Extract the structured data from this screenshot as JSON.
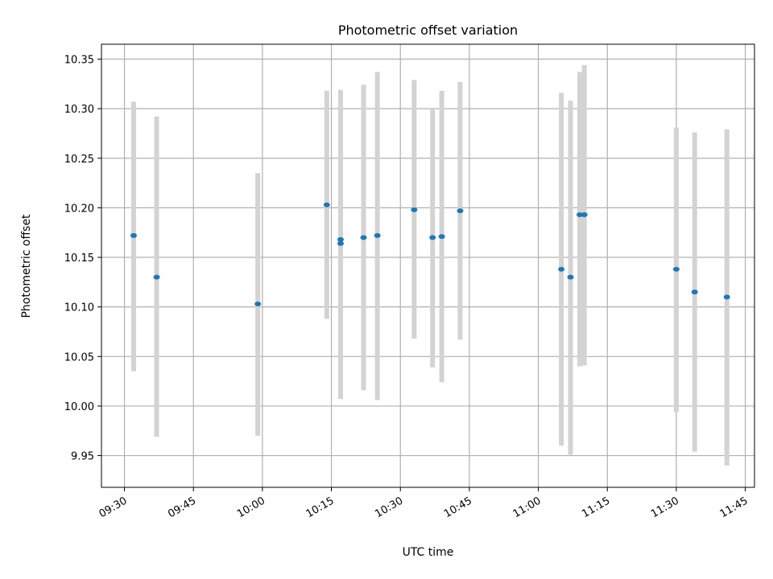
{
  "chart_data": {
    "type": "scatter",
    "title": "Photometric offset variation",
    "xlabel": "UTC time",
    "ylabel": "Photometric offset",
    "xlim": [
      "09:25",
      "11:47"
    ],
    "ylim": [
      9.918,
      10.365
    ],
    "x_ticks": [
      "09:30",
      "09:45",
      "10:00",
      "10:15",
      "10:30",
      "10:45",
      "11:00",
      "11:15",
      "11:30",
      "11:45"
    ],
    "y_ticks": [
      "9.95",
      "10.00",
      "10.05",
      "10.10",
      "10.15",
      "10.20",
      "10.25",
      "10.30",
      "10.35"
    ],
    "grid": true,
    "colors": {
      "points": "#1f77b4",
      "errorbars": "#d3d3d3",
      "grid": "#b0b0b0"
    },
    "points": [
      {
        "x": "09:32",
        "y": 10.172,
        "err_low": 10.035,
        "err_high": 10.307
      },
      {
        "x": "09:37",
        "y": 10.13,
        "err_low": 9.969,
        "err_high": 10.292
      },
      {
        "x": "09:59",
        "y": 10.103,
        "err_low": 9.97,
        "err_high": 10.235
      },
      {
        "x": "10:14",
        "y": 10.203,
        "err_low": 10.088,
        "err_high": 10.318
      },
      {
        "x": "10:17",
        "y": 10.164,
        "err_low": 10.007,
        "err_high": 10.319
      },
      {
        "x": "10:17",
        "y": 10.168,
        "err_low": 10.022,
        "err_high": 10.313
      },
      {
        "x": "10:22",
        "y": 10.17,
        "err_low": 10.016,
        "err_high": 10.324
      },
      {
        "x": "10:25",
        "y": 10.172,
        "err_low": 10.006,
        "err_high": 10.337
      },
      {
        "x": "10:33",
        "y": 10.198,
        "err_low": 10.068,
        "err_high": 10.329
      },
      {
        "x": "10:37",
        "y": 10.17,
        "err_low": 10.039,
        "err_high": 10.3
      },
      {
        "x": "10:39",
        "y": 10.171,
        "err_low": 10.024,
        "err_high": 10.318
      },
      {
        "x": "10:43",
        "y": 10.197,
        "err_low": 10.067,
        "err_high": 10.327
      },
      {
        "x": "11:05",
        "y": 10.138,
        "err_low": 9.96,
        "err_high": 10.316
      },
      {
        "x": "11:07",
        "y": 10.13,
        "err_low": 9.951,
        "err_high": 10.308
      },
      {
        "x": "11:09",
        "y": 10.193,
        "err_low": 10.04,
        "err_high": 10.337
      },
      {
        "x": "11:10",
        "y": 10.193,
        "err_low": 10.041,
        "err_high": 10.344
      },
      {
        "x": "11:30",
        "y": 10.138,
        "err_low": 9.994,
        "err_high": 10.281
      },
      {
        "x": "11:34",
        "y": 10.115,
        "err_low": 9.954,
        "err_high": 10.276
      },
      {
        "x": "11:41",
        "y": 10.11,
        "err_low": 9.94,
        "err_high": 10.279
      }
    ]
  }
}
